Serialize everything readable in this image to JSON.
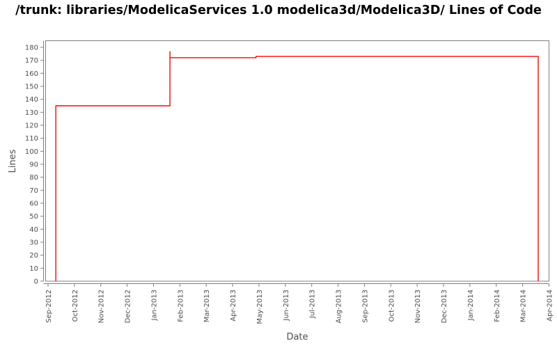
{
  "chart_data": {
    "type": "line",
    "step_style": "step-after",
    "title": "/trunk: libraries/ModelicaServices 1.0 modelica3d/Modelica3D/ Lines of Code",
    "xlabel": "Date",
    "ylabel": "Lines",
    "grid": false,
    "legend": "none",
    "x_domain": [
      "2012-09-01",
      "2014-04-01"
    ],
    "x_tick_labels": [
      "Sep-2012",
      "Oct-2012",
      "Nov-2012",
      "Dec-2012",
      "Jan-2013",
      "Feb-2013",
      "Mar-2013",
      "Apr-2013",
      "May-2013",
      "Jun-2013",
      "Jul-2013",
      "Aug-2013",
      "Sep-2013",
      "Oct-2013",
      "Nov-2013",
      "Dec-2013",
      "Jan-2014",
      "Feb-2014",
      "Mar-2014",
      "Apr-2014"
    ],
    "y_axis": {
      "min": 0,
      "max": 180,
      "step": 10
    },
    "series": [
      {
        "name": "Lines of Code",
        "color": "#ff0000",
        "baseline": 0,
        "points": [
          {
            "date": "2012-09-10",
            "lines": 135
          },
          {
            "date": "2013-01-20",
            "lines": 177
          },
          {
            "date": "2013-01-20",
            "lines": 172
          },
          {
            "date": "2013-04-28",
            "lines": 173
          },
          {
            "date": "2014-03-19",
            "lines": 0
          }
        ]
      }
    ]
  },
  "style": {
    "line_color": "#ff0000",
    "axis_color": "#7f7f7f",
    "tick_label_color": "#4d4d4d",
    "title_color": "#000000",
    "background": "#ffffff"
  }
}
